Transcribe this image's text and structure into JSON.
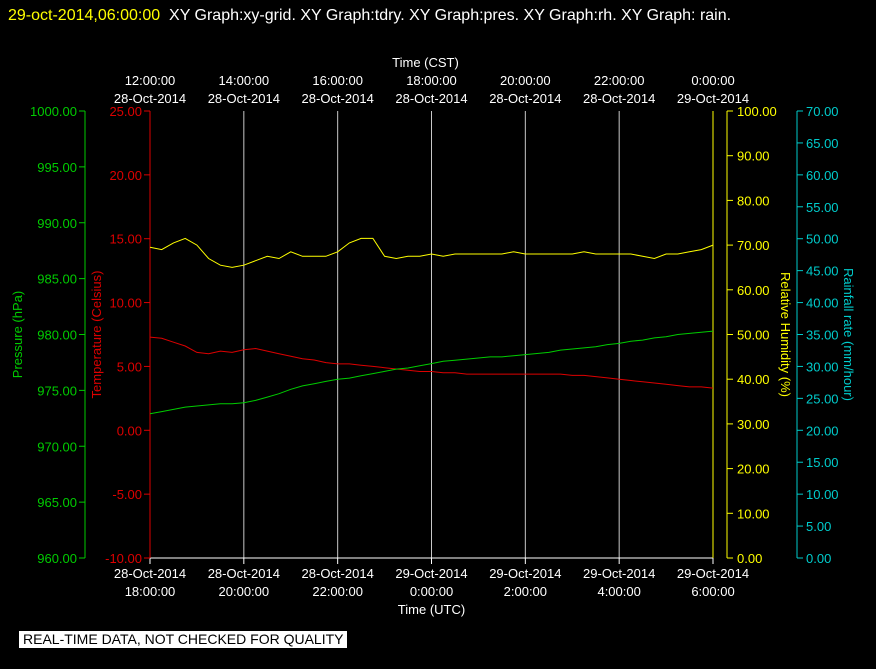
{
  "header": {
    "datetime": "29-oct-2014,06:00:00",
    "graphs": "XY Graph:xy-grid.  XY Graph:tdry.  XY Graph:pres.  XY Graph:rh.  XY Graph: rain."
  },
  "footer": {
    "notice": "REAL-TIME DATA, NOT CHECKED FOR QUALITY"
  },
  "colors": {
    "pressure": "#00cc00",
    "temperature": "#dd0000",
    "humidity": "#ffff00",
    "rain": "#00cccc",
    "axis": "#ffffff",
    "grid": "#c8c8c8"
  },
  "chart_data": {
    "type": "line",
    "grid": true,
    "top_axis": {
      "label": "Time (CST)",
      "ticks": [
        {
          "time": "12:00:00",
          "date": "28-Oct-2014"
        },
        {
          "time": "14:00:00",
          "date": "28-Oct-2014"
        },
        {
          "time": "16:00:00",
          "date": "28-Oct-2014"
        },
        {
          "time": "18:00:00",
          "date": "28-Oct-2014"
        },
        {
          "time": "20:00:00",
          "date": "28-Oct-2014"
        },
        {
          "time": "22:00:00",
          "date": "28-Oct-2014"
        },
        {
          "time": "0:00:00",
          "date": "29-Oct-2014"
        }
      ]
    },
    "bottom_axis": {
      "label": "Time (UTC)",
      "ticks": [
        {
          "date": "28-Oct-2014",
          "time": "18:00:00"
        },
        {
          "date": "28-Oct-2014",
          "time": "20:00:00"
        },
        {
          "date": "28-Oct-2014",
          "time": "22:00:00"
        },
        {
          "date": "29-Oct-2014",
          "time": "0:00:00"
        },
        {
          "date": "29-Oct-2014",
          "time": "2:00:00"
        },
        {
          "date": "29-Oct-2014",
          "time": "4:00:00"
        },
        {
          "date": "29-Oct-2014",
          "time": "6:00:00"
        }
      ],
      "xlim_hours": [
        0,
        12
      ]
    },
    "axes": {
      "pressure": {
        "label": "Pressure (hPa)",
        "ylim": [
          960,
          1000
        ],
        "ticks": [
          "960.00",
          "965.00",
          "970.00",
          "975.00",
          "980.00",
          "985.00",
          "990.00",
          "995.00",
          "1000.00"
        ]
      },
      "temperature": {
        "label": "Temperature (Celsius)",
        "ylim": [
          -10,
          25
        ],
        "ticks": [
          "-10.00",
          "-5.00",
          "0.00",
          "5.00",
          "10.00",
          "15.00",
          "20.00",
          "25.00"
        ]
      },
      "humidity": {
        "label": "Relative Humidity (%)",
        "ylim": [
          0,
          100
        ],
        "ticks": [
          "0.00",
          "10.00",
          "20.00",
          "30.00",
          "40.00",
          "50.00",
          "60.00",
          "70.00",
          "80.00",
          "90.00",
          "100.00"
        ]
      },
      "rain": {
        "label": "Rainfall rate (mm/hour)",
        "ylim": [
          0,
          70
        ],
        "ticks": [
          "0.00",
          "5.00",
          "10.00",
          "15.00",
          "20.00",
          "25.00",
          "30.00",
          "35.00",
          "40.00",
          "45.00",
          "50.00",
          "55.00",
          "60.00",
          "65.00",
          "70.00"
        ]
      }
    },
    "series": [
      {
        "name": "tdry",
        "axis": "temperature",
        "x": [
          0,
          0.25,
          0.5,
          0.75,
          1,
          1.25,
          1.5,
          1.75,
          2,
          2.25,
          2.5,
          2.75,
          3,
          3.25,
          3.5,
          3.75,
          4,
          4.25,
          4.5,
          4.75,
          5,
          5.25,
          5.5,
          5.75,
          6,
          6.25,
          6.5,
          6.75,
          7,
          7.25,
          7.5,
          7.75,
          8,
          8.25,
          8.5,
          8.75,
          9,
          9.25,
          9.5,
          9.75,
          10,
          10.25,
          10.5,
          10.75,
          11,
          11.25,
          11.5,
          11.75,
          12
        ],
        "y": [
          7.3,
          7.2,
          6.9,
          6.6,
          6.1,
          6.0,
          6.2,
          6.1,
          6.3,
          6.4,
          6.2,
          6.0,
          5.8,
          5.6,
          5.5,
          5.3,
          5.2,
          5.2,
          5.1,
          5.0,
          4.9,
          4.8,
          4.7,
          4.6,
          4.6,
          4.5,
          4.5,
          4.4,
          4.4,
          4.4,
          4.4,
          4.4,
          4.4,
          4.4,
          4.4,
          4.4,
          4.3,
          4.3,
          4.2,
          4.1,
          4.0,
          3.9,
          3.8,
          3.7,
          3.6,
          3.5,
          3.4,
          3.4,
          3.3
        ]
      },
      {
        "name": "rh",
        "axis": "humidity",
        "x": [
          0,
          0.25,
          0.5,
          0.75,
          1,
          1.25,
          1.5,
          1.75,
          2,
          2.25,
          2.5,
          2.75,
          3,
          3.25,
          3.5,
          3.75,
          4,
          4.25,
          4.5,
          4.75,
          5,
          5.25,
          5.5,
          5.75,
          6,
          6.25,
          6.5,
          6.75,
          7,
          7.25,
          7.5,
          7.75,
          8,
          8.25,
          8.5,
          8.75,
          9,
          9.25,
          9.5,
          9.75,
          10,
          10.25,
          10.5,
          10.75,
          11,
          11.25,
          11.5,
          11.75,
          12
        ],
        "y": [
          69.5,
          69.0,
          70.5,
          71.5,
          70.0,
          67.0,
          65.5,
          65.0,
          65.5,
          66.5,
          67.5,
          67.0,
          68.5,
          67.5,
          67.5,
          67.5,
          68.5,
          70.5,
          71.5,
          71.5,
          67.5,
          67.0,
          67.5,
          67.5,
          68.0,
          67.5,
          68.0,
          68.0,
          68.0,
          68.0,
          68.0,
          68.5,
          68.0,
          68.0,
          68.0,
          68.0,
          68.0,
          68.5,
          68.0,
          68.0,
          68.0,
          68.0,
          67.5,
          67.0,
          68.0,
          68.0,
          68.5,
          69.0,
          70.0
        ]
      },
      {
        "name": "pres",
        "axis": "pressure",
        "x": [
          0,
          0.25,
          0.5,
          0.75,
          1,
          1.25,
          1.5,
          1.75,
          2,
          2.25,
          2.5,
          2.75,
          3,
          3.25,
          3.5,
          3.75,
          4,
          4.25,
          4.5,
          4.75,
          5,
          5.25,
          5.5,
          5.75,
          6,
          6.25,
          6.5,
          6.75,
          7,
          7.25,
          7.5,
          7.75,
          8,
          8.25,
          8.5,
          8.75,
          9,
          9.25,
          9.5,
          9.75,
          10,
          10.25,
          10.5,
          10.75,
          11,
          11.25,
          11.5,
          11.75,
          12
        ],
        "y": [
          972.9,
          973.1,
          973.3,
          973.5,
          973.6,
          973.7,
          973.8,
          973.8,
          973.9,
          974.1,
          974.4,
          974.7,
          975.1,
          975.4,
          975.6,
          975.8,
          976.0,
          976.1,
          976.3,
          976.5,
          976.7,
          976.9,
          977.0,
          977.2,
          977.4,
          977.6,
          977.7,
          977.8,
          977.9,
          978.0,
          978.0,
          978.1,
          978.2,
          978.3,
          978.4,
          978.6,
          978.7,
          978.8,
          978.9,
          979.1,
          979.2,
          979.4,
          979.5,
          979.7,
          979.8,
          980.0,
          980.1,
          980.2,
          980.3
        ]
      },
      {
        "name": "rain",
        "axis": "rain",
        "x": [],
        "y": []
      }
    ]
  }
}
